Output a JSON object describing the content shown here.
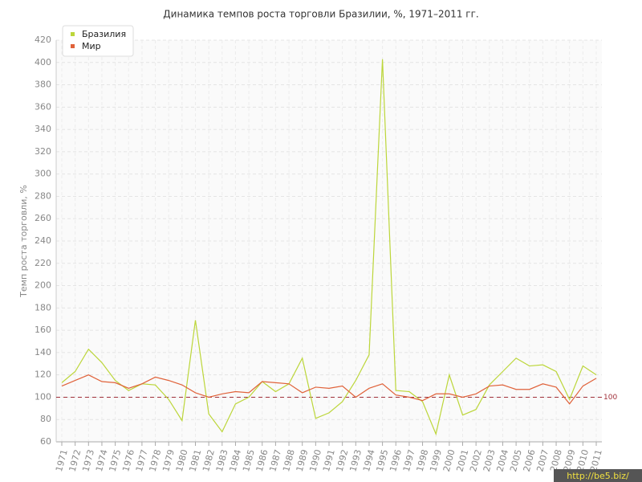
{
  "chart_data": {
    "type": "line",
    "title": "Динамика темпов роста торговли Бразилии, %, 1971–2011 гг.",
    "y_label": "Темп роста торговли, %",
    "categories": [
      "1971",
      "1972",
      "1973",
      "1974",
      "1975",
      "1976",
      "1977",
      "1978",
      "1979",
      "1980",
      "1981",
      "1982",
      "1983",
      "1984",
      "1985",
      "1986",
      "1987",
      "1988",
      "1989",
      "1990",
      "1991",
      "1992",
      "1993",
      "1994",
      "1995",
      "1996",
      "1997",
      "1998",
      "1999",
      "2000",
      "2001",
      "2002",
      "2003",
      "2004",
      "2005",
      "2006",
      "2007",
      "2008",
      "2009",
      "2010",
      "2011"
    ],
    "series": [
      {
        "name": "Бразилия",
        "color": "#bcd63a",
        "values": [
          113,
          123,
          143,
          131,
          115,
          106,
          112,
          111,
          98,
          79,
          169,
          85,
          69,
          94,
          100,
          114,
          105,
          112,
          135,
          81,
          86,
          96,
          115,
          138,
          403,
          106,
          105,
          96,
          67,
          120,
          84,
          89,
          111,
          123,
          135,
          128,
          129,
          123,
          98,
          128,
          120
        ]
      },
      {
        "name": "Мир",
        "color": "#e0623a",
        "values": [
          110,
          115,
          120,
          114,
          113,
          108,
          112,
          118,
          115,
          111,
          104,
          100,
          103,
          105,
          104,
          114,
          113,
          112,
          104,
          109,
          108,
          110,
          100,
          108,
          112,
          102,
          100,
          97,
          103,
          103,
          100,
          103,
          110,
          111,
          107,
          107,
          112,
          109,
          94,
          110,
          117
        ]
      }
    ],
    "ylim": [
      60,
      420
    ],
    "yticks": [
      60,
      80,
      100,
      120,
      140,
      160,
      180,
      200,
      220,
      240,
      260,
      280,
      300,
      320,
      340,
      360,
      380,
      400,
      420
    ],
    "grid": true,
    "reference_line": 100,
    "legend": "top-left",
    "watermark": "http://be5.biz/"
  }
}
